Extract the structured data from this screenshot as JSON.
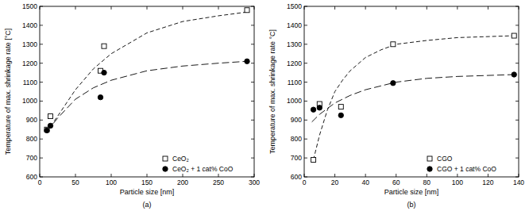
{
  "chart_data": [
    {
      "type": "scatter",
      "title": "(a)",
      "x_label": "Particle size [nm]",
      "y_label": "Temperature of max. shrinkage rate [°C]",
      "xlim": [
        0,
        300
      ],
      "ylim": [
        600,
        1500
      ],
      "xticks": [
        0,
        50,
        100,
        150,
        200,
        250,
        300
      ],
      "yticks": [
        600,
        700,
        800,
        900,
        1000,
        1100,
        1200,
        1300,
        1400,
        1500
      ],
      "legend": "lower right",
      "series": [
        {
          "name": "CeO₂",
          "color": "#000000",
          "marker": "open-square",
          "x": [
            10,
            15,
            85,
            90,
            290
          ],
          "values": [
            850,
            920,
            1160,
            1290,
            1480
          ]
        },
        {
          "name": "CeO₂ + 1 cat% CoO",
          "color": "#000000",
          "marker": "filled-circle",
          "x": [
            10,
            15,
            85,
            90,
            290
          ],
          "values": [
            845,
            870,
            1020,
            1150,
            1210
          ]
        },
        {
          "type": "line",
          "line_style": "dashed",
          "color": "#000000",
          "x": [
            10,
            25,
            50,
            75,
            100,
            150,
            200,
            250,
            290
          ],
          "values": [
            840,
            920,
            1060,
            1170,
            1250,
            1360,
            1420,
            1450,
            1470
          ]
        },
        {
          "type": "line",
          "line_style": "long-dashed",
          "color": "#000000",
          "x": [
            10,
            25,
            50,
            75,
            100,
            150,
            200,
            250,
            290
          ],
          "values": [
            840,
            910,
            1010,
            1070,
            1110,
            1160,
            1185,
            1200,
            1210
          ]
        }
      ]
    },
    {
      "type": "scatter",
      "title": "(b)",
      "x_label": "Particle size [nm]",
      "y_label": "Temperature of max. shrinkage rate °C]",
      "xlim": [
        0,
        140
      ],
      "ylim": [
        600,
        1500
      ],
      "xticks": [
        0,
        20,
        40,
        60,
        80,
        100,
        120,
        140
      ],
      "yticks": [
        600,
        700,
        800,
        900,
        1000,
        1100,
        1200,
        1300,
        1400,
        1500
      ],
      "legend": "lower right",
      "series": [
        {
          "name": "CGO",
          "color": "#000000",
          "marker": "open-square",
          "x": [
            6,
            10,
            24,
            58,
            137
          ],
          "values": [
            690,
            985,
            970,
            1300,
            1345
          ]
        },
        {
          "name": "CGO + 1 cat% CoO",
          "color": "#000000",
          "marker": "filled-circle",
          "x": [
            6,
            10,
            24,
            58,
            137
          ],
          "values": [
            955,
            965,
            925,
            1095,
            1140
          ]
        },
        {
          "type": "line",
          "line_style": "dashed",
          "color": "#000000",
          "x": [
            6,
            10,
            15,
            20,
            25,
            30,
            40,
            50,
            60,
            80,
            100,
            137
          ],
          "values": [
            690,
            820,
            950,
            1050,
            1110,
            1160,
            1230,
            1270,
            1300,
            1320,
            1335,
            1345
          ]
        },
        {
          "type": "line",
          "line_style": "long-dashed",
          "color": "#000000",
          "x": [
            5,
            10,
            20,
            30,
            40,
            60,
            80,
            100,
            137
          ],
          "values": [
            890,
            930,
            990,
            1030,
            1060,
            1100,
            1120,
            1130,
            1140
          ]
        }
      ]
    }
  ]
}
